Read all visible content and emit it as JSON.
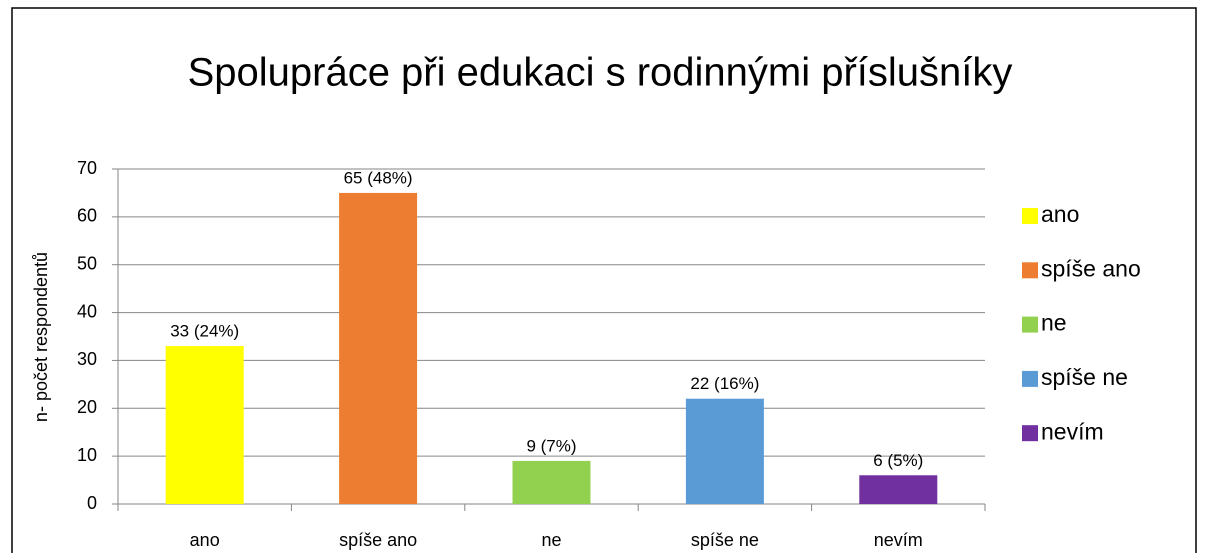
{
  "chart_data": {
    "type": "bar",
    "title": "Spolupráce při edukaci s rodinnými příslušníky",
    "y_label": "n- počet respondentů",
    "categories": [
      "ano",
      "spíše ano",
      "ne",
      "spíše ne",
      "nevím"
    ],
    "values": [
      33,
      65,
      9,
      22,
      6
    ],
    "value_labels": [
      "33 (24%)",
      "65 (48%)",
      "9 (7%)",
      "22 (16%)",
      "6 (5%)"
    ],
    "colors": [
      "#ffff00",
      "#ed7d31",
      "#92d050",
      "#5b9bd5",
      "#7030a0"
    ],
    "ylim": [
      0,
      70
    ],
    "yticks": [
      0,
      10,
      20,
      30,
      40,
      50,
      60,
      70
    ],
    "grid": true,
    "legend": "right"
  }
}
